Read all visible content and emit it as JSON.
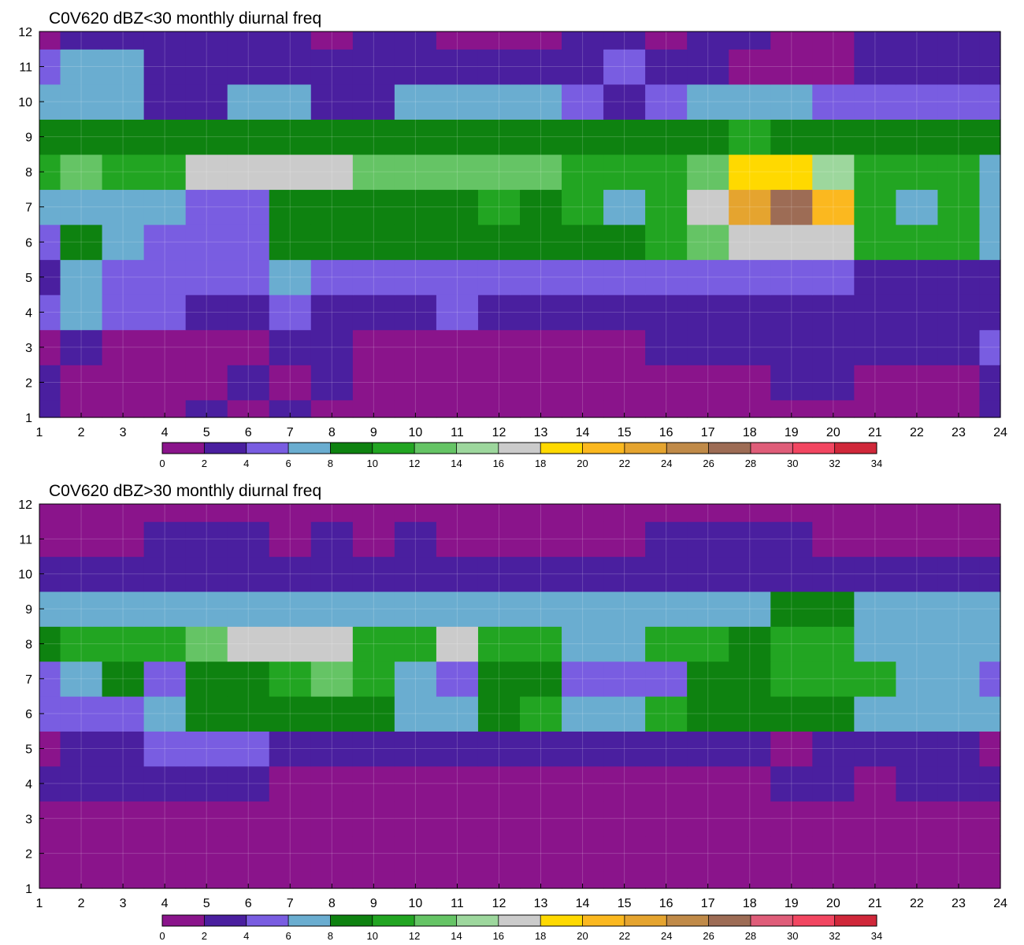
{
  "chart_data": [
    {
      "type": "heatmap",
      "title": "C0V620 dBZ<30 monthly diurnal freq",
      "xlabel": "",
      "ylabel": "",
      "x": [
        1,
        2,
        3,
        4,
        5,
        6,
        7,
        8,
        9,
        10,
        11,
        12,
        13,
        14,
        15,
        16,
        17,
        18,
        19,
        20,
        21,
        22,
        23,
        24
      ],
      "y": [
        1,
        2,
        3,
        4,
        5,
        6,
        7,
        8,
        9,
        10,
        11,
        12
      ],
      "xlim": [
        1,
        24
      ],
      "ylim": [
        1,
        12
      ],
      "grid": true,
      "colorbar_ticks": [
        "0",
        "2",
        "4",
        "6",
        "8",
        "10",
        "12",
        "14",
        "16",
        "18",
        "20",
        "22",
        "24",
        "26",
        "28",
        "30",
        "32",
        "34"
      ],
      "colorbar_levels": [
        0,
        2,
        4,
        6,
        8,
        10,
        12,
        14,
        16,
        18,
        20,
        22,
        24,
        26,
        28,
        30,
        32,
        34
      ],
      "colorbar_colors": [
        "#8a148b",
        "#4a1f9f",
        "#795de1",
        "#6aadd0",
        "#0e8210",
        "#22a522",
        "#65c465",
        "#9dd79d",
        "#cbcbcb",
        "#ffd900",
        "#fbb81f",
        "#e5a42f",
        "#c08a48",
        "#9d6c55",
        "#df5d79",
        "#f24661",
        "#d0283a"
      ],
      "values": [
        [
          2,
          1,
          0,
          1,
          2,
          1,
          2,
          1,
          0,
          0,
          0,
          0,
          0,
          0,
          0,
          0,
          0,
          0,
          0,
          1,
          1,
          0,
          1,
          3
        ],
        [
          3,
          1,
          0,
          0,
          1,
          2,
          1,
          3,
          0,
          0,
          0,
          0,
          0,
          0,
          0,
          1,
          1,
          1,
          2,
          2,
          1,
          0,
          1,
          3
        ],
        [
          0,
          3,
          0,
          0,
          0,
          1,
          3,
          3,
          0,
          0,
          1,
          1,
          1,
          1,
          1,
          2,
          2,
          2,
          3,
          3,
          2,
          3,
          3,
          4
        ],
        [
          4,
          6,
          4,
          4,
          3,
          3,
          4,
          3,
          3,
          3,
          4,
          3,
          3,
          3,
          3,
          3,
          3,
          3,
          2,
          2,
          2,
          3,
          3,
          2
        ],
        [
          3,
          6,
          5,
          5,
          5,
          4,
          6,
          5,
          5,
          4,
          5,
          5,
          5,
          4,
          5,
          5,
          4,
          4,
          4,
          4,
          2,
          2,
          3,
          3
        ],
        [
          5,
          9,
          6,
          5,
          5,
          5,
          9,
          9,
          9,
          8,
          9,
          9,
          9,
          9,
          9,
          10,
          13,
          17,
          17,
          17,
          10,
          10,
          10,
          7
        ],
        [
          7,
          6,
          6,
          6,
          5,
          5,
          9,
          9,
          8,
          9,
          9,
          10,
          9,
          10,
          7,
          10,
          16,
          22,
          27,
          21,
          11,
          7,
          11,
          7
        ],
        [
          10,
          12,
          10,
          11,
          16,
          17,
          16,
          17,
          12,
          13,
          12,
          13,
          12,
          11,
          11,
          10,
          12,
          19,
          18,
          14,
          10,
          10,
          10,
          7
        ],
        [
          8,
          8,
          8,
          8,
          9,
          9,
          9,
          9,
          9,
          9,
          9,
          9,
          9,
          9,
          9,
          9,
          9,
          10,
          8,
          8,
          8,
          8,
          8,
          8
        ],
        [
          7,
          6,
          6,
          3,
          3,
          6,
          6,
          3,
          3,
          6,
          6,
          6,
          6,
          4,
          3,
          4,
          6,
          6,
          6,
          5,
          5,
          5,
          5,
          5
        ],
        [
          4,
          6,
          6,
          3,
          3,
          3,
          3,
          3,
          3,
          3,
          3,
          3,
          3,
          3,
          5,
          3,
          3,
          1,
          1,
          1,
          3,
          3,
          3,
          3
        ],
        [
          1,
          2,
          2,
          3,
          3,
          3,
          2,
          1,
          3,
          3,
          1,
          1,
          1,
          2,
          3,
          1,
          3,
          2,
          1,
          1,
          3,
          3,
          3,
          3
        ]
      ]
    },
    {
      "type": "heatmap",
      "title": "C0V620 dBZ>30 monthly diurnal freq",
      "xlabel": "",
      "ylabel": "",
      "x": [
        1,
        2,
        3,
        4,
        5,
        6,
        7,
        8,
        9,
        10,
        11,
        12,
        13,
        14,
        15,
        16,
        17,
        18,
        19,
        20,
        21,
        22,
        23,
        24
      ],
      "y": [
        1,
        2,
        3,
        4,
        5,
        6,
        7,
        8,
        9,
        10,
        11,
        12
      ],
      "xlim": [
        1,
        24
      ],
      "ylim": [
        1,
        12
      ],
      "grid": true,
      "colorbar_ticks": [
        "0",
        "2",
        "4",
        "6",
        "8",
        "10",
        "12",
        "14",
        "16",
        "18",
        "20",
        "22",
        "24",
        "26",
        "28",
        "30",
        "32",
        "34"
      ],
      "colorbar_levels": [
        0,
        2,
        4,
        6,
        8,
        10,
        12,
        14,
        16,
        18,
        20,
        22,
        24,
        26,
        28,
        30,
        32,
        34
      ],
      "colorbar_colors": [
        "#8a148b",
        "#4a1f9f",
        "#795de1",
        "#6aadd0",
        "#0e8210",
        "#22a522",
        "#65c465",
        "#9dd79d",
        "#cbcbcb",
        "#ffd900",
        "#fbb81f",
        "#e5a42f",
        "#c08a48",
        "#9d6c55",
        "#df5d79",
        "#f24661",
        "#d0283a"
      ],
      "values": [
        [
          1,
          1,
          1,
          1,
          1,
          1,
          1,
          1,
          1,
          1,
          1,
          1,
          1,
          1,
          1,
          1,
          1,
          1,
          1,
          1,
          1,
          1,
          1,
          1
        ],
        [
          1,
          1,
          1,
          1,
          1,
          1,
          1,
          1,
          1,
          1,
          1,
          1,
          1,
          1,
          1,
          1,
          1,
          1,
          1,
          1,
          1,
          1,
          1,
          1
        ],
        [
          1,
          1,
          1,
          1,
          1,
          1,
          1,
          1,
          1,
          1,
          1,
          1,
          1,
          1,
          1,
          1,
          1,
          1,
          1,
          1,
          1,
          1,
          1,
          1
        ],
        [
          3,
          3,
          3,
          3,
          3,
          3,
          1,
          1,
          1,
          1,
          1,
          1,
          1,
          1,
          1,
          1,
          1,
          1,
          3,
          3,
          1,
          3,
          3,
          3
        ],
        [
          1,
          3,
          3,
          5,
          5,
          5,
          3,
          3,
          3,
          3,
          3,
          3,
          3,
          3,
          3,
          3,
          3,
          3,
          1,
          3,
          3,
          3,
          3,
          1
        ],
        [
          5,
          5,
          5,
          7,
          9,
          9,
          9,
          9,
          9,
          7,
          7,
          9,
          11,
          7,
          7,
          11,
          9,
          9,
          9,
          9,
          7,
          7,
          7,
          7
        ],
        [
          5,
          7,
          9,
          5,
          9,
          9,
          11,
          13,
          11,
          7,
          5,
          9,
          9,
          5,
          5,
          5,
          9,
          9,
          11,
          11,
          11,
          7,
          7,
          5
        ],
        [
          9,
          11,
          11,
          11,
          13,
          17,
          17,
          17,
          11,
          11,
          17,
          11,
          11,
          7,
          7,
          11,
          11,
          9,
          11,
          11,
          7,
          7,
          7,
          7
        ],
        [
          7,
          7,
          7,
          7,
          7,
          7,
          7,
          7,
          7,
          7,
          7,
          7,
          7,
          7,
          7,
          7,
          7,
          7,
          9,
          9,
          7,
          7,
          7,
          7
        ],
        [
          3,
          3,
          3,
          3,
          3,
          3,
          3,
          3,
          3,
          3,
          3,
          3,
          3,
          3,
          3,
          3,
          3,
          3,
          3,
          3,
          3,
          3,
          3,
          3
        ],
        [
          1,
          1,
          1,
          3,
          3,
          3,
          1,
          3,
          1,
          3,
          1,
          1,
          1,
          1,
          1,
          3,
          3,
          3,
          3,
          1,
          1,
          1,
          1,
          1
        ],
        [
          1,
          1,
          1,
          1,
          1,
          1,
          1,
          1,
          1,
          1,
          1,
          1,
          1,
          1,
          1,
          1,
          1,
          1,
          1,
          1,
          1,
          1,
          1,
          1
        ]
      ]
    }
  ]
}
